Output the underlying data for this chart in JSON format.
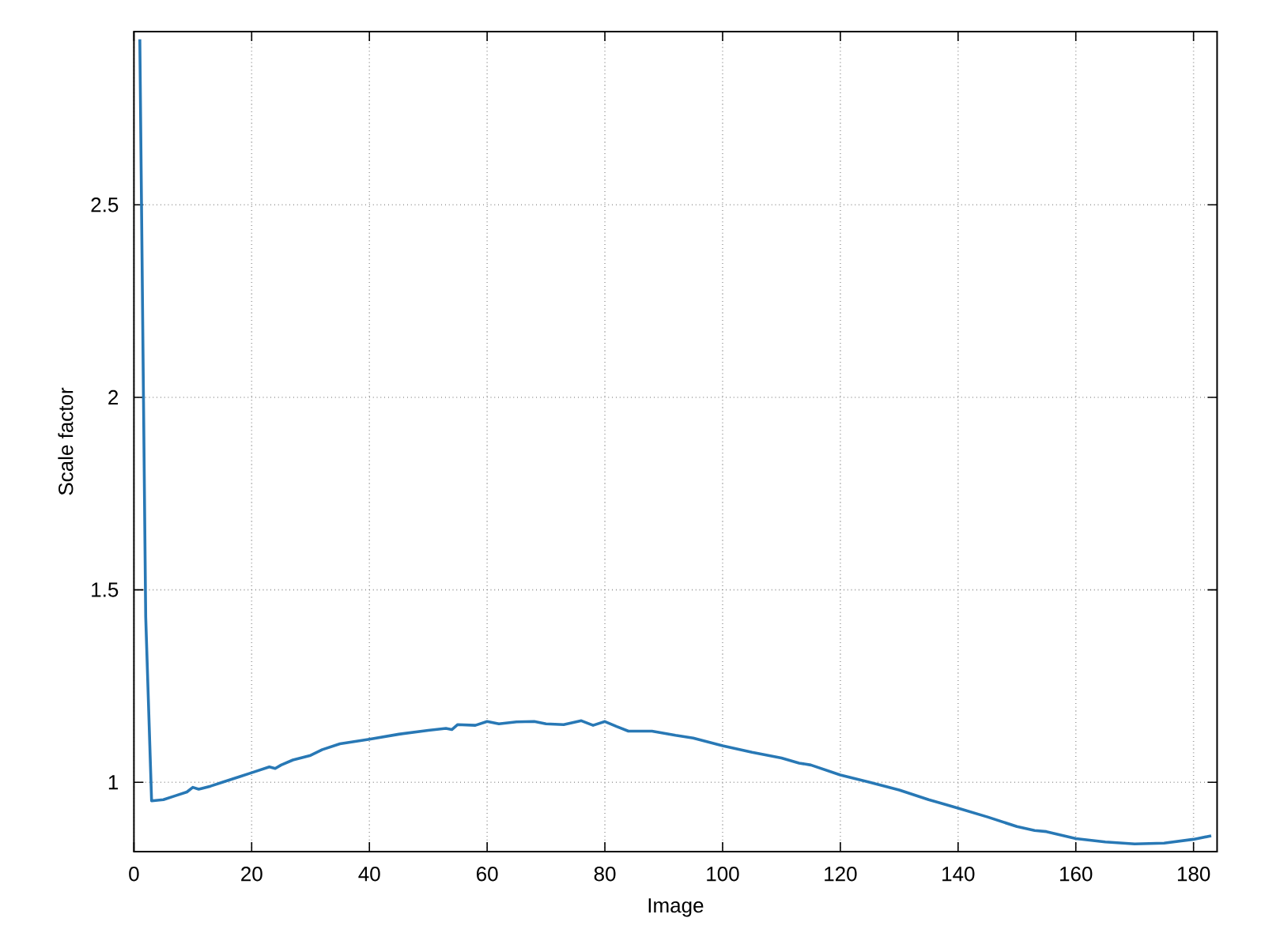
{
  "chart_data": {
    "type": "line",
    "xlabel": "Image",
    "ylabel": "Scale factor",
    "xlim": [
      0,
      184
    ],
    "ylim": [
      0.82,
      2.95
    ],
    "xticks": [
      0,
      20,
      40,
      60,
      80,
      100,
      120,
      140,
      160,
      180
    ],
    "yticks": [
      1,
      1.5,
      2,
      2.5
    ],
    "grid": true,
    "series": [
      {
        "color": "#2878b5",
        "x": [
          1,
          2,
          3,
          5,
          7,
          9,
          10,
          11,
          13,
          15,
          18,
          20,
          23,
          24,
          25,
          27,
          30,
          32,
          35,
          40,
          45,
          50,
          53,
          54,
          55,
          58,
          60,
          62,
          65,
          68,
          70,
          73,
          76,
          78,
          80,
          82,
          84,
          88,
          92,
          95,
          100,
          105,
          110,
          113,
          115,
          120,
          125,
          130,
          135,
          140,
          145,
          150,
          153,
          155,
          160,
          165,
          170,
          175,
          180,
          183
        ],
        "values": [
          2.93,
          1.43,
          0.952,
          0.955,
          0.965,
          0.975,
          0.987,
          0.982,
          0.99,
          1.0,
          1.015,
          1.025,
          1.04,
          1.036,
          1.045,
          1.058,
          1.07,
          1.085,
          1.1,
          1.112,
          1.125,
          1.135,
          1.14,
          1.137,
          1.15,
          1.148,
          1.158,
          1.152,
          1.157,
          1.158,
          1.152,
          1.15,
          1.16,
          1.148,
          1.158,
          1.145,
          1.133,
          1.133,
          1.122,
          1.115,
          1.095,
          1.078,
          1.063,
          1.05,
          1.045,
          1.019,
          1.0,
          0.98,
          0.955,
          0.933,
          0.91,
          0.885,
          0.875,
          0.872,
          0.854,
          0.845,
          0.84,
          0.842,
          0.852,
          0.861
        ]
      }
    ]
  }
}
